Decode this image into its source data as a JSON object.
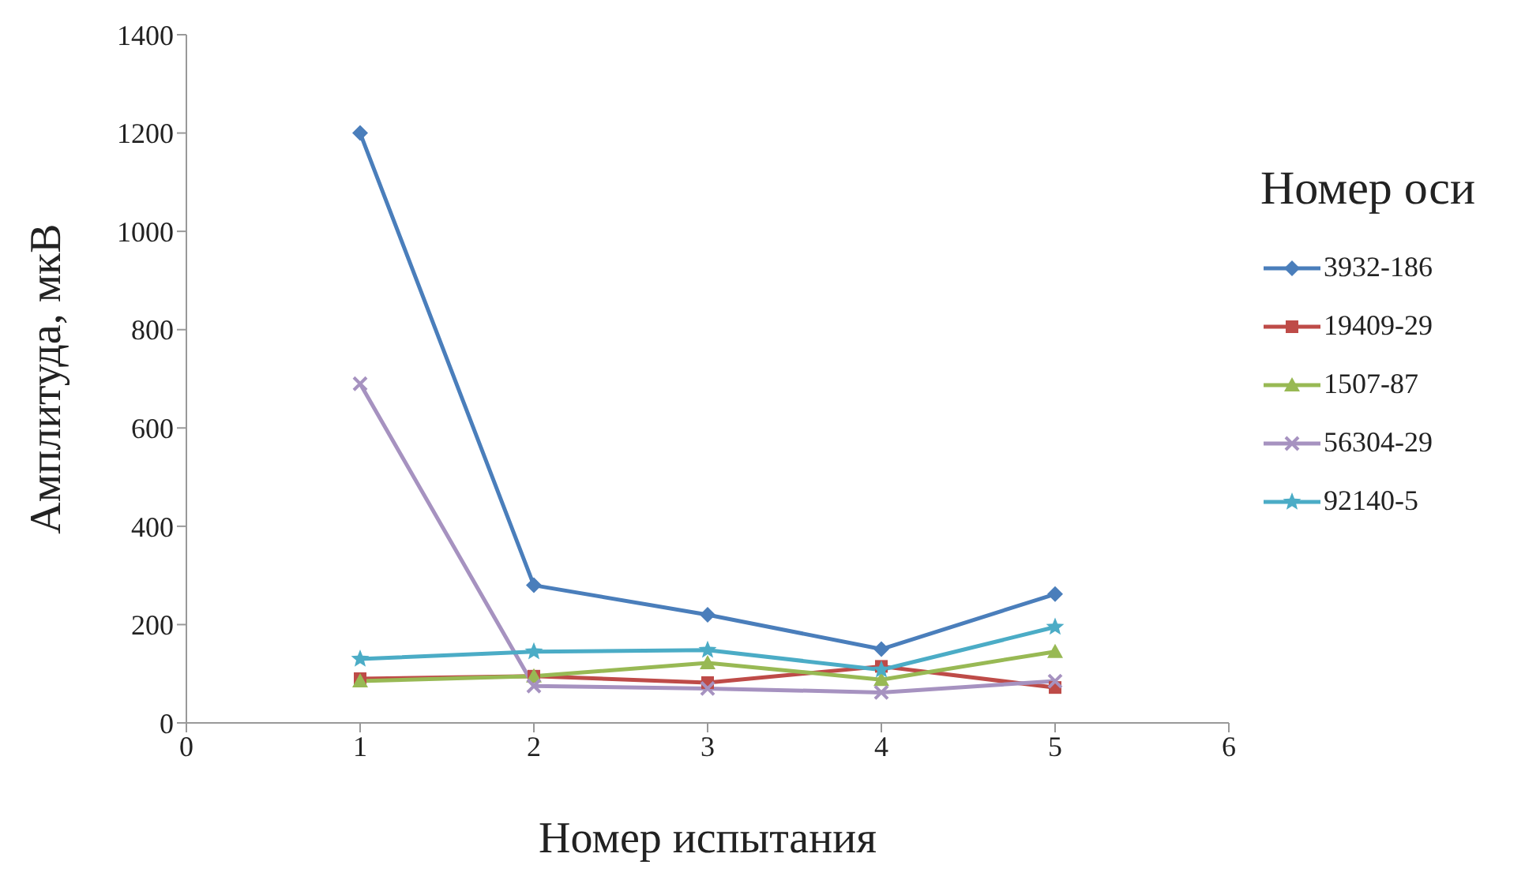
{
  "chart_data": {
    "type": "line",
    "xlabel": "Номер испытания",
    "ylabel": "Амплитуда, мкВ",
    "legend_title": "Номер оси",
    "legend": "right",
    "grid": false,
    "x": [
      1,
      2,
      3,
      4,
      5
    ],
    "xlim": [
      0,
      6
    ],
    "xticks": [
      0,
      1,
      2,
      3,
      4,
      5,
      6
    ],
    "ylim": [
      0,
      1400
    ],
    "yticks": [
      0,
      200,
      400,
      600,
      800,
      1000,
      1200,
      1400
    ],
    "series": [
      {
        "name": "3932-186",
        "color": "#4a7ebb",
        "marker": "diamond",
        "values": [
          1200,
          280,
          220,
          150,
          262
        ]
      },
      {
        "name": "19409-29",
        "color": "#be4b48",
        "marker": "square",
        "values": [
          90,
          95,
          82,
          115,
          72
        ]
      },
      {
        "name": "1507-87",
        "color": "#98b954",
        "marker": "triangle",
        "values": [
          85,
          95,
          122,
          88,
          145
        ]
      },
      {
        "name": "56304-29",
        "color": "#a692c0",
        "marker": "cross",
        "values": [
          690,
          75,
          70,
          62,
          85
        ]
      },
      {
        "name": "92140-5",
        "color": "#4bacc6",
        "marker": "star",
        "values": [
          130,
          145,
          148,
          108,
          195
        ]
      }
    ]
  }
}
